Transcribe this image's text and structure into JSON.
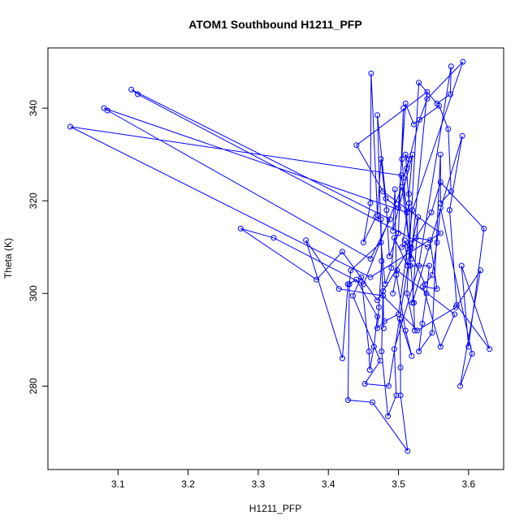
{
  "chart_data": {
    "type": "line",
    "title": "ATOM1 Southbound H1211_PFP",
    "xlabel": "H1211_PFP",
    "ylabel": "Theta (K)",
    "xlim": [
      3.0,
      3.65
    ],
    "ylim": [
      262,
      353
    ],
    "xticks": [
      "3.1",
      "3.2",
      "3.3",
      "3.4",
      "3.5",
      "3.6"
    ],
    "yticks": [
      "280",
      "300",
      "320",
      "340"
    ],
    "grid": false,
    "series": [
      {
        "color": "#0000ff",
        "markers": "open-circle",
        "points": [
          [
            3.492,
            300.0
          ],
          [
            3.498,
            305.0
          ],
          [
            3.58,
            295.5
          ],
          [
            3.56,
            288.5
          ],
          [
            3.535,
            301.5
          ],
          [
            3.555,
            301.0
          ],
          [
            3.545,
            311.5
          ],
          [
            3.525,
            312.0
          ],
          [
            3.505,
            310.0
          ],
          [
            3.515,
            319.5
          ],
          [
            3.51,
            330.0
          ],
          [
            3.515,
            329.0
          ],
          [
            3.507,
            325.0
          ],
          [
            3.512,
            327.0
          ],
          [
            3.53,
            337.5
          ],
          [
            3.541,
            342.0
          ],
          [
            3.592,
            350.0
          ],
          [
            3.52,
            318.0
          ],
          [
            3.5,
            295.5
          ],
          [
            3.48,
            294.0
          ],
          [
            3.47,
            292.5
          ],
          [
            3.472,
            297.0
          ],
          [
            3.476,
            307.0
          ],
          [
            3.475,
            316.0
          ],
          [
            3.468,
            316.5
          ],
          [
            3.45,
            311.0
          ],
          [
            3.46,
            319.5
          ],
          [
            3.461,
            347.5
          ],
          [
            3.47,
            317.0
          ],
          [
            3.475,
            329.0
          ],
          [
            3.483,
            318.0
          ],
          [
            3.487,
            308.0
          ],
          [
            3.5,
            313.0
          ],
          [
            3.507,
            340.0
          ],
          [
            3.505,
            329.0
          ],
          [
            3.522,
            298.0
          ],
          [
            3.523,
            292.0
          ],
          [
            3.512,
            300.0
          ],
          [
            3.529,
            345.5
          ],
          [
            3.555,
            341.0
          ],
          [
            3.574,
            343.0
          ],
          [
            3.575,
            349.0
          ],
          [
            3.529,
            306.0
          ],
          [
            3.494,
            288.0
          ],
          [
            3.497,
            278.0
          ],
          [
            3.485,
            273.5
          ],
          [
            3.476,
            287.5
          ],
          [
            3.478,
            300.5
          ],
          [
            3.479,
            292.5
          ],
          [
            3.47,
            338.5
          ],
          [
            3.482,
            320.5
          ],
          [
            3.5,
            318.5
          ],
          [
            3.51,
            341.0
          ],
          [
            3.522,
            336.5
          ],
          [
            3.558,
            340.5
          ],
          [
            3.571,
            335.5
          ],
          [
            3.575,
            322.0
          ],
          [
            3.56,
            319.5
          ],
          [
            3.56,
            330.0
          ],
          [
            3.548,
            291.5
          ],
          [
            3.529,
            287.5
          ],
          [
            3.534,
            293.5
          ],
          [
            3.54,
            300.0
          ],
          [
            3.544,
            306.0
          ],
          [
            3.517,
            306.0
          ],
          [
            3.515,
            321.5
          ],
          [
            3.52,
            330.0
          ],
          [
            3.492,
            313.5
          ],
          [
            3.495,
            322.5
          ],
          [
            3.497,
            304.0
          ],
          [
            3.51,
            292.0
          ],
          [
            3.519,
            286.5
          ],
          [
            3.502,
            294.5
          ],
          [
            3.503,
            284.0
          ],
          [
            3.503,
            278.0
          ],
          [
            3.513,
            266.0
          ],
          [
            3.463,
            276.5
          ],
          [
            3.428,
            277.0
          ],
          [
            3.43,
            302.0
          ],
          [
            3.432,
            305.0
          ],
          [
            3.475,
            311.0
          ],
          [
            3.481,
            302.0
          ],
          [
            3.49,
            305.5
          ],
          [
            3.494,
            312.0
          ],
          [
            3.513,
            306.0
          ],
          [
            3.509,
            311.5
          ],
          [
            3.538,
            302.0
          ],
          [
            3.548,
            304.0
          ],
          [
            3.555,
            311.0
          ],
          [
            3.56,
            318.5
          ],
          [
            3.605,
            287.0
          ],
          [
            3.588,
            280.0
          ],
          [
            3.617,
            305.0
          ],
          [
            3.582,
            297.0
          ],
          [
            3.527,
            292.0
          ],
          [
            3.478,
            299.5
          ],
          [
            3.415,
            301.0
          ],
          [
            3.368,
            311.5
          ],
          [
            3.42,
            286.0
          ],
          [
            3.428,
            302.0
          ],
          [
            3.44,
            303.0
          ],
          [
            3.47,
            295.0
          ],
          [
            3.465,
            288.5
          ],
          [
            3.459,
            283.5
          ],
          [
            3.458,
            287.5
          ],
          [
            3.447,
            303.5
          ],
          [
            3.435,
            299.5
          ],
          [
            3.474,
            285.5
          ],
          [
            3.452,
            280.5
          ],
          [
            3.486,
            280.0
          ],
          [
            3.518,
            310.0
          ],
          [
            3.528,
            316.5
          ],
          [
            3.52,
            298.0
          ],
          [
            3.591,
            334.0
          ],
          [
            3.573,
            318.0
          ],
          [
            3.583,
            297.5
          ],
          [
            3.63,
            288.0
          ],
          [
            3.59,
            306.0
          ],
          [
            3.6,
            288.5
          ],
          [
            3.622,
            314.0
          ],
          [
            3.56,
            324.0
          ],
          [
            3.547,
            317.5
          ],
          [
            3.47,
            298.5
          ],
          [
            3.42,
            309.0
          ],
          [
            3.383,
            303.0
          ],
          [
            3.275,
            314.0
          ],
          [
            3.322,
            312.0
          ],
          [
            3.45,
            302.0
          ],
          [
            3.505,
            323.0
          ],
          [
            3.518,
            307.5
          ],
          [
            3.541,
            343.5
          ],
          [
            3.44,
            332.0
          ],
          [
            3.478,
            322.0
          ],
          [
            3.56,
            313.0
          ],
          [
            3.46,
            303.5
          ],
          [
            3.032,
            336.0
          ],
          [
            3.504,
            325.5
          ],
          [
            3.512,
            317.5
          ],
          [
            3.08,
            340.0
          ],
          [
            3.085,
            339.5
          ],
          [
            3.46,
            307.5
          ],
          [
            3.488,
            316.0
          ],
          [
            3.119,
            344.0
          ],
          [
            3.128,
            343.0
          ],
          [
            3.542,
            310.0
          ]
        ]
      }
    ]
  }
}
